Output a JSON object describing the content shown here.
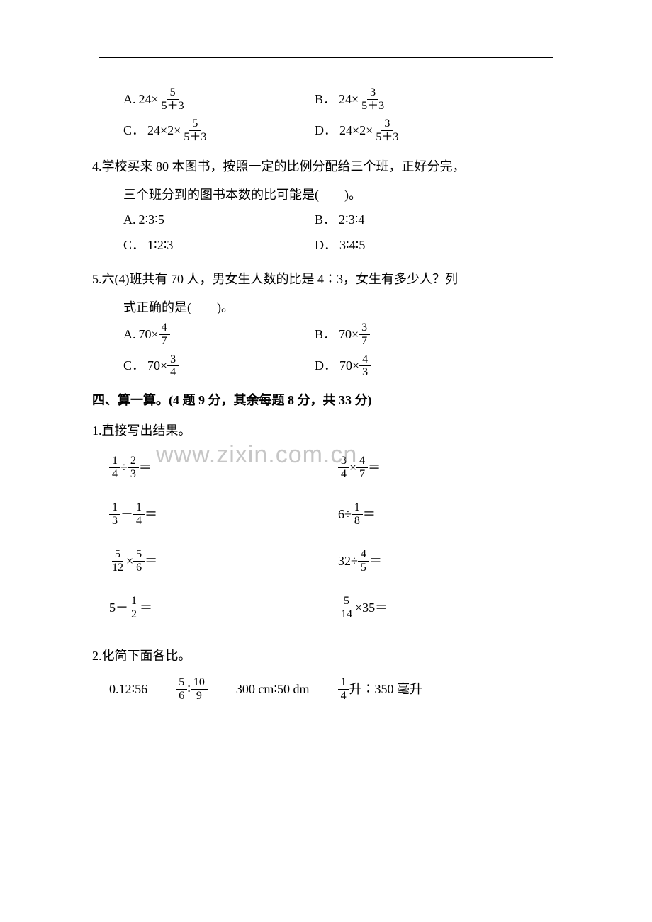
{
  "border": {
    "color": "#000000"
  },
  "q3": {
    "options": {
      "A": {
        "label": "A.",
        "prefix": "24×",
        "num": "5",
        "den": "5＋3"
      },
      "B": {
        "label": "B．",
        "prefix": "24×",
        "num": "3",
        "den": "5＋3"
      },
      "C": {
        "label": "C．",
        "prefix": "24×2×",
        "num": "5",
        "den": "5＋3"
      },
      "D": {
        "label": "D．",
        "prefix": "24×2×",
        "num": "3",
        "den": "5＋3"
      }
    }
  },
  "q4": {
    "stem": "4.学校买来 80 本图书，按照一定的比例分配给三个班，正好分完，",
    "cont": "三个班分到的图书本数的比可能是(　　)。",
    "options": {
      "A": {
        "label": "A.",
        "text": "2∶3∶5"
      },
      "B": {
        "label": "B．",
        "text": "2∶3∶4"
      },
      "C": {
        "label": "C．",
        "text": "1∶2∶3"
      },
      "D": {
        "label": "D．",
        "text": "3∶4∶5"
      }
    }
  },
  "q5": {
    "stem": "5.六(4)班共有 70 人，男女生人数的比是 4∶3，女生有多少人？列",
    "cont": "式正确的是(　　)。",
    "options": {
      "A": {
        "label": "A.",
        "prefix": "70×",
        "num": "4",
        "den": "7"
      },
      "B": {
        "label": "B．",
        "prefix": "70×",
        "num": "3",
        "den": "7"
      },
      "C": {
        "label": "C．",
        "prefix": "70×",
        "num": "3",
        "den": "4"
      },
      "D": {
        "label": "D．",
        "prefix": "70×",
        "num": "4",
        "den": "3"
      }
    }
  },
  "section4": {
    "title": "四、算一算。(4 题 9 分，其余每题 8 分，共 33 分)"
  },
  "calc1": {
    "title": "1.直接写出结果。",
    "items": [
      {
        "l_num": "1",
        "l_den": "4",
        "op": "÷",
        "r_num": "2",
        "r_den": "3",
        "suffix": "＝",
        "type": "ff"
      },
      {
        "l_num": "3",
        "l_den": "4",
        "op": "×",
        "r_num": "4",
        "r_den": "7",
        "suffix": "＝",
        "type": "ff"
      },
      {
        "l_num": "1",
        "l_den": "3",
        "op": "－",
        "r_num": "1",
        "r_den": "4",
        "suffix": "＝",
        "type": "ff"
      },
      {
        "l_whole": "6",
        "op": "÷",
        "r_num": "1",
        "r_den": "8",
        "suffix": "＝",
        "type": "wf"
      },
      {
        "l_num": "5",
        "l_den": "12",
        "op": "×",
        "r_num": "5",
        "r_den": "6",
        "suffix": "＝",
        "type": "ff"
      },
      {
        "l_whole": "32",
        "op": "÷",
        "r_num": "4",
        "r_den": "5",
        "suffix": "＝",
        "type": "wf"
      },
      {
        "l_whole": "5",
        "op": "－",
        "r_num": "1",
        "r_den": "2",
        "suffix": "＝",
        "type": "wf"
      },
      {
        "l_num": "5",
        "l_den": "14",
        "op": "×",
        "r_whole": "35",
        "suffix": "＝",
        "type": "fw"
      }
    ]
  },
  "calc2": {
    "title": "2.化简下面各比。",
    "items": {
      "a": "0.12∶56",
      "b": {
        "l_num": "5",
        "l_den": "6",
        "mid": "∶",
        "r_num": "10",
        "r_den": "9"
      },
      "c": "300 cm∶50 dm",
      "d": {
        "l_num": "1",
        "l_den": "4",
        "mid": "升∶350 毫升"
      }
    }
  },
  "watermark": "www.zixin.com.cn"
}
